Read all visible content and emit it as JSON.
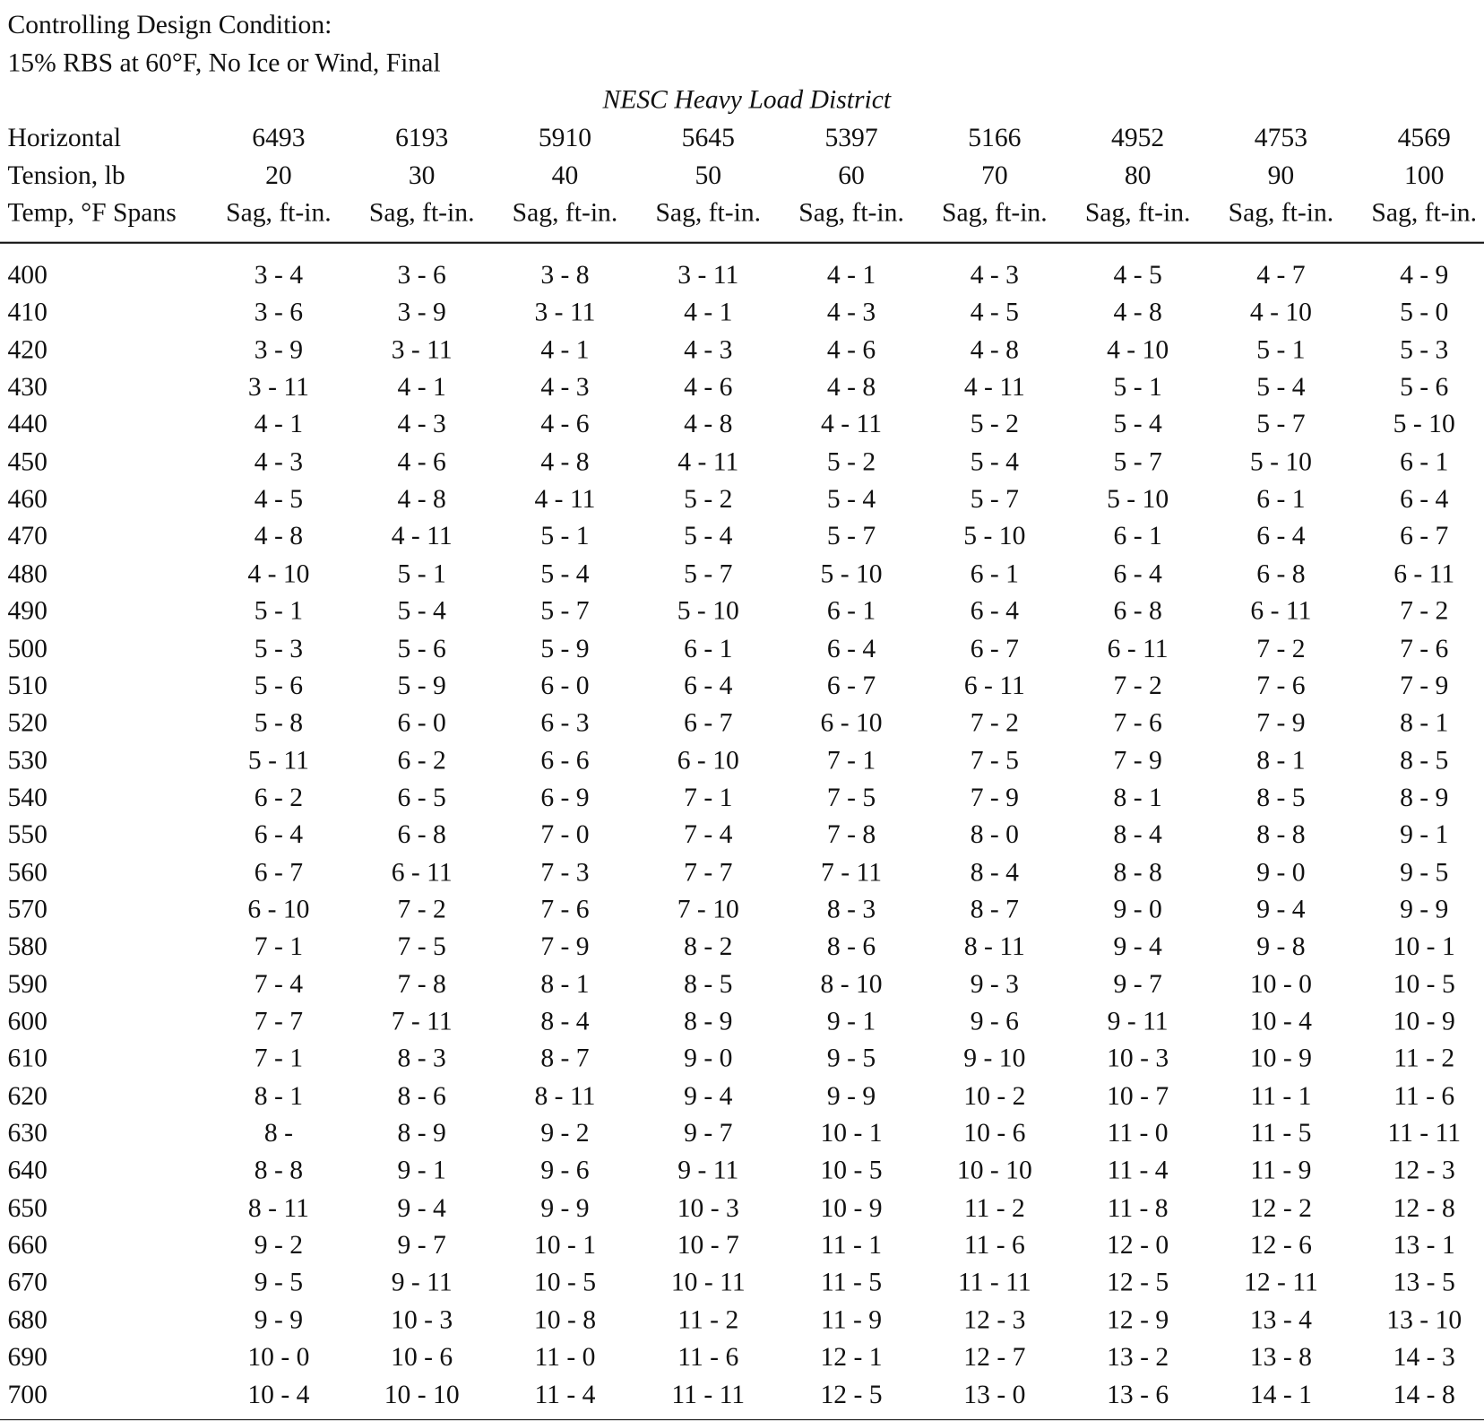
{
  "header": {
    "line1": "Controlling Design Condition:",
    "line2": "15% RBS at 60°F, No Ice or Wind, Final"
  },
  "table": {
    "district": "NESC Heavy Load District",
    "row_labels": [
      "Horizontal",
      "Tension, lb",
      "Temp, °F Spans"
    ],
    "tensions": [
      6493,
      6193,
      5910,
      5645,
      5397,
      5166,
      4952,
      4753,
      4569
    ],
    "temps": [
      20,
      30,
      40,
      50,
      60,
      70,
      80,
      90,
      100
    ],
    "sag_header": "Sag, ft-in.",
    "rows": [
      {
        "span": 400,
        "sags": [
          "3 - 4",
          "3 - 6",
          "3 - 8",
          "3 - 11",
          "4 - 1",
          "4 - 3",
          "4 - 5",
          "4 - 7",
          "4 - 9"
        ]
      },
      {
        "span": 410,
        "sags": [
          "3 - 6",
          "3 - 9",
          "3 - 11",
          "4 - 1",
          "4 - 3",
          "4 - 5",
          "4 - 8",
          "4 - 10",
          "5 - 0"
        ]
      },
      {
        "span": 420,
        "sags": [
          "3 - 9",
          "3 - 11",
          "4 - 1",
          "4 - 3",
          "4 - 6",
          "4 - 8",
          "4 - 10",
          "5 - 1",
          "5 - 3"
        ]
      },
      {
        "span": 430,
        "sags": [
          "3 - 11",
          "4 - 1",
          "4 - 3",
          "4 - 6",
          "4 - 8",
          "4 - 11",
          "5 - 1",
          "5 - 4",
          "5 - 6"
        ]
      },
      {
        "span": 440,
        "sags": [
          "4 - 1",
          "4 - 3",
          "4 - 6",
          "4 - 8",
          "4 - 11",
          "5 - 2",
          "5 - 4",
          "5 - 7",
          "5 - 10"
        ]
      },
      {
        "span": 450,
        "sags": [
          "4 - 3",
          "4 - 6",
          "4 - 8",
          "4 - 11",
          "5 - 2",
          "5 - 4",
          "5 - 7",
          "5 - 10",
          "6 - 1"
        ]
      },
      {
        "span": 460,
        "sags": [
          "4 - 5",
          "4 - 8",
          "4 - 11",
          "5 - 2",
          "5 - 4",
          "5 - 7",
          "5 - 10",
          "6 - 1",
          "6 - 4"
        ]
      },
      {
        "span": 470,
        "sags": [
          "4 - 8",
          "4 - 11",
          "5 - 1",
          "5 - 4",
          "5 - 7",
          "5 - 10",
          "6 - 1",
          "6 - 4",
          "6 - 7"
        ]
      },
      {
        "span": 480,
        "sags": [
          "4 - 10",
          "5 - 1",
          "5 - 4",
          "5 - 7",
          "5 - 10",
          "6 - 1",
          "6 - 4",
          "6 - 8",
          "6 - 11"
        ]
      },
      {
        "span": 490,
        "sags": [
          "5 - 1",
          "5 - 4",
          "5 - 7",
          "5 - 10",
          "6 - 1",
          "6 - 4",
          "6 - 8",
          "6 - 11",
          "7 - 2"
        ]
      },
      {
        "span": 500,
        "sags": [
          "5 - 3",
          "5 - 6",
          "5 - 9",
          "6 - 1",
          "6 - 4",
          "6 - 7",
          "6 - 11",
          "7 - 2",
          "7 - 6"
        ]
      },
      {
        "span": 510,
        "sags": [
          "5 - 6",
          "5 - 9",
          "6 - 0",
          "6 - 4",
          "6 - 7",
          "6 - 11",
          "7 - 2",
          "7 - 6",
          "7 - 9"
        ]
      },
      {
        "span": 520,
        "sags": [
          "5 - 8",
          "6 - 0",
          "6 - 3",
          "6 - 7",
          "6 - 10",
          "7 - 2",
          "7 - 6",
          "7 - 9",
          "8 - 1"
        ]
      },
      {
        "span": 530,
        "sags": [
          "5 - 11",
          "6 - 2",
          "6 - 6",
          "6 - 10",
          "7 - 1",
          "7 - 5",
          "7 - 9",
          "8 - 1",
          "8 - 5"
        ]
      },
      {
        "span": 540,
        "sags": [
          "6 - 2",
          "6 - 5",
          "6 - 9",
          "7 - 1",
          "7 - 5",
          "7 - 9",
          "8 - 1",
          "8 - 5",
          "8 - 9"
        ]
      },
      {
        "span": 550,
        "sags": [
          "6 - 4",
          "6 - 8",
          "7 - 0",
          "7 - 4",
          "7 - 8",
          "8 - 0",
          "8 - 4",
          "8 - 8",
          "9 - 1"
        ]
      },
      {
        "span": 560,
        "sags": [
          "6 - 7",
          "6 - 11",
          "7 - 3",
          "7 - 7",
          "7 - 11",
          "8 - 4",
          "8 - 8",
          "9 - 0",
          "9 - 5"
        ]
      },
      {
        "span": 570,
        "sags": [
          "6 - 10",
          "7 - 2",
          "7 - 6",
          "7 - 10",
          "8 - 3",
          "8 - 7",
          "9 - 0",
          "9 - 4",
          "9 - 9"
        ]
      },
      {
        "span": 580,
        "sags": [
          "7 - 1",
          "7 - 5",
          "7 - 9",
          "8 - 2",
          "8 - 6",
          "8 - 11",
          "9 - 4",
          "9 - 8",
          "10 - 1"
        ]
      },
      {
        "span": 590,
        "sags": [
          "7 - 4",
          "7 - 8",
          "8 - 1",
          "8 - 5",
          "8 - 10",
          "9 - 3",
          "9 - 7",
          "10 - 0",
          "10 - 5"
        ]
      },
      {
        "span": 600,
        "sags": [
          "7 - 7",
          "7 - 11",
          "8 - 4",
          "8 - 9",
          "9 - 1",
          "9 - 6",
          "9 - 11",
          "10 - 4",
          "10 - 9"
        ]
      },
      {
        "span": 610,
        "sags": [
          "7 - 1",
          "8 - 3",
          "8 - 7",
          "9 - 0",
          "9 - 5",
          "9 - 10",
          "10 - 3",
          "10 - 9",
          "11 - 2"
        ]
      },
      {
        "span": 620,
        "sags": [
          "8 - 1",
          "8 - 6",
          "8 - 11",
          "9 - 4",
          "9 - 9",
          "10 - 2",
          "10 - 7",
          "11 - 1",
          "11 - 6"
        ]
      },
      {
        "span": 630,
        "sags": [
          "8 -",
          "8 - 9",
          "9 - 2",
          "9 - 7",
          "10 - 1",
          "10 - 6",
          "11 - 0",
          "11 - 5",
          "11 - 11"
        ]
      },
      {
        "span": 640,
        "sags": [
          "8 - 8",
          "9 - 1",
          "9 - 6",
          "9 - 11",
          "10 - 5",
          "10 - 10",
          "11 - 4",
          "11 - 9",
          "12 - 3"
        ]
      },
      {
        "span": 650,
        "sags": [
          "8 - 11",
          "9 - 4",
          "9 - 9",
          "10 - 3",
          "10 - 9",
          "11 - 2",
          "11 - 8",
          "12 - 2",
          "12 - 8"
        ]
      },
      {
        "span": 660,
        "sags": [
          "9 - 2",
          "9 - 7",
          "10 - 1",
          "10 - 7",
          "11 - 1",
          "11 - 6",
          "12 - 0",
          "12 - 6",
          "13 - 1"
        ]
      },
      {
        "span": 670,
        "sags": [
          "9 - 5",
          "9 - 11",
          "10 - 5",
          "10 - 11",
          "11 - 5",
          "11 - 11",
          "12 - 5",
          "12 - 11",
          "13 - 5"
        ]
      },
      {
        "span": 680,
        "sags": [
          "9 - 9",
          "10 - 3",
          "10 - 8",
          "11 - 2",
          "11 - 9",
          "12 - 3",
          "12 - 9",
          "13 - 4",
          "13 - 10"
        ]
      },
      {
        "span": 690,
        "sags": [
          "10 - 0",
          "10 - 6",
          "11 - 0",
          "11 - 6",
          "12 - 1",
          "12 - 7",
          "13 - 2",
          "13 - 8",
          "14 - 3"
        ]
      },
      {
        "span": 700,
        "sags": [
          "10 - 4",
          "10 - 10",
          "11 - 4",
          "11 - 11",
          "12 - 5",
          "13 - 0",
          "13 - 6",
          "14 - 1",
          "14 - 8"
        ]
      }
    ]
  }
}
